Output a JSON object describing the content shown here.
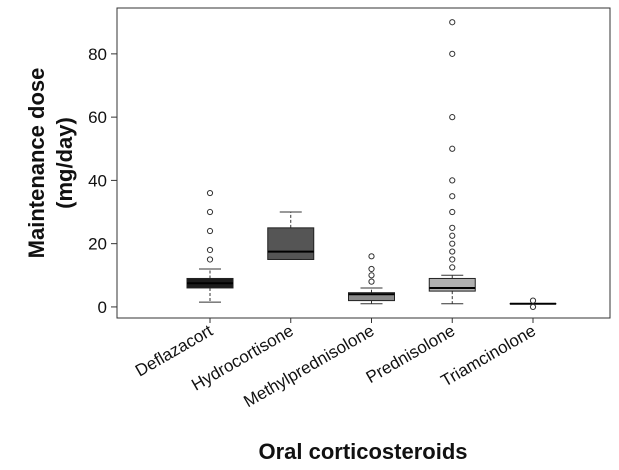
{
  "chart_data": {
    "type": "box",
    "x_label": "Oral corticosteroids",
    "y_label": [
      "Maintenance dose",
      "(mg/day)"
    ],
    "categories": [
      "Deflazacort",
      "Hydrocortisone",
      "Methylprednisolone",
      "Prednisolone",
      "Triamcinolone"
    ],
    "colors": [
      "#1c1c1c",
      "#555555",
      "#8a8a8a",
      "#b0b0b0",
      "#cfcfcf"
    ],
    "boxes": [
      {
        "low": 1.5,
        "q1": 6,
        "median": 7.5,
        "q3": 9,
        "high": 12,
        "outliers": [
          15,
          18,
          24,
          30,
          36
        ]
      },
      {
        "low": 15,
        "q1": 15,
        "median": 17.5,
        "q3": 25,
        "high": 30,
        "outliers": []
      },
      {
        "low": 1,
        "q1": 2,
        "median": 4,
        "q3": 4.5,
        "high": 6,
        "outliers": [
          8,
          10,
          12,
          16
        ]
      },
      {
        "low": 1,
        "q1": 5,
        "median": 6,
        "q3": 9,
        "high": 10,
        "outliers": [
          12.5,
          15,
          17.5,
          20,
          22.5,
          25,
          30,
          35,
          40,
          50,
          60,
          80,
          90
        ]
      },
      {
        "low": 1,
        "q1": 1,
        "median": 1,
        "q3": 1,
        "high": 1,
        "outliers": [
          0,
          2
        ]
      }
    ],
    "ylim": [
      -3.5,
      94.5
    ],
    "yticks": [
      0,
      20,
      40,
      60,
      80
    ]
  }
}
